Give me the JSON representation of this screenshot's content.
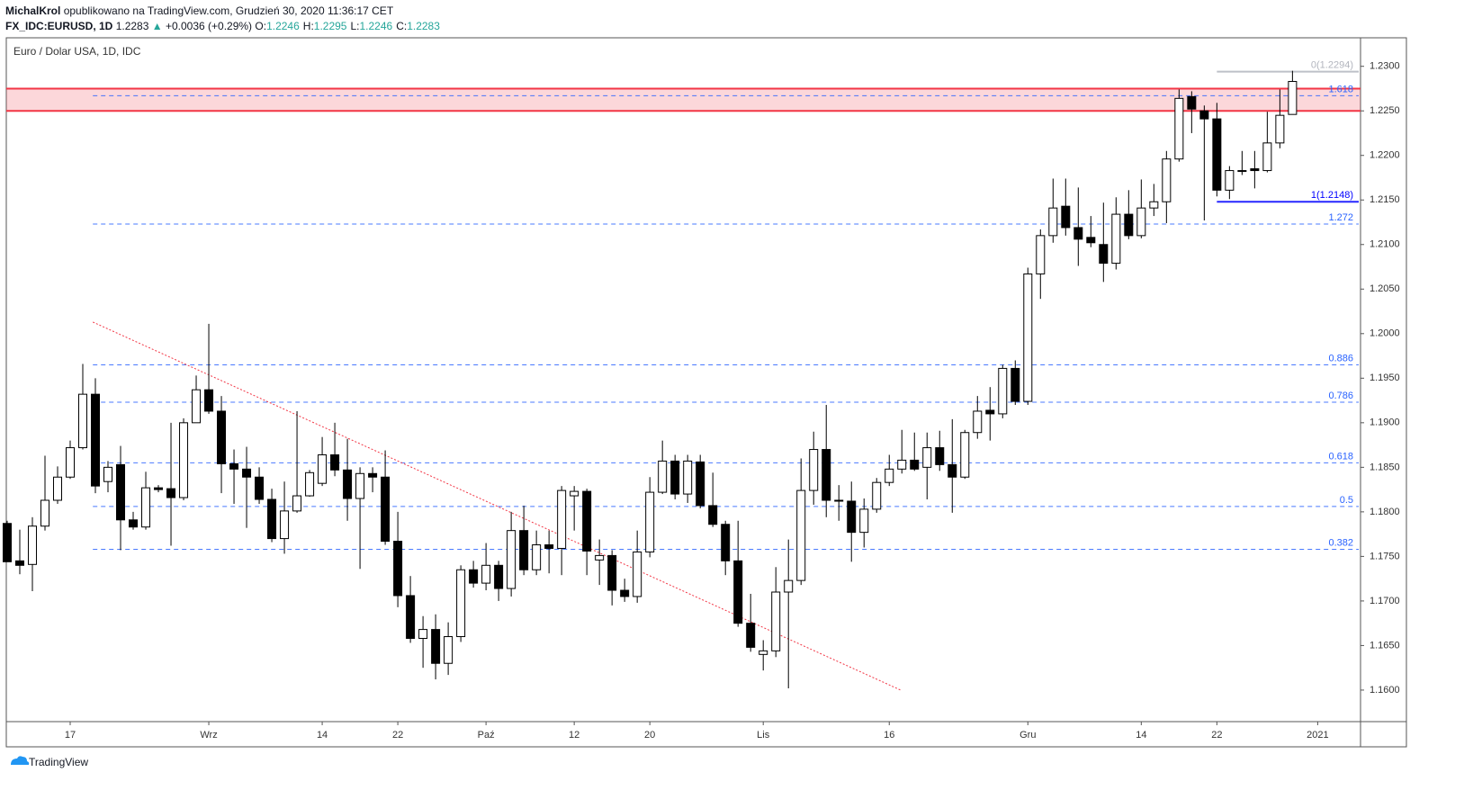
{
  "header": {
    "author": "MichalKrol",
    "published": "opublikowano na TradingView.com, Grudzień 30, 2020 11:36:17 CET",
    "symbol": "FX_IDC:EURUSD, 1D",
    "last": "1.2283",
    "arrow": "▲",
    "change": "+0.0036 (+0.29%)",
    "ohlc": [
      {
        "label": "O:",
        "value": "1.2246"
      },
      {
        "label": "H:",
        "value": "1.2295"
      },
      {
        "label": "L:",
        "value": "1.2246"
      },
      {
        "label": "C:",
        "value": "1.2283"
      }
    ]
  },
  "footer": {
    "brand": "TradingView"
  },
  "chart_data": {
    "type": "candlestick",
    "title": "Euro / Dolar USA, 1D, IDC",
    "open": [
      1.1787,
      1.1745,
      1.1741,
      1.1784,
      1.1813,
      1.1839,
      1.1872,
      1.1932,
      1.1834,
      1.1853,
      1.1791,
      1.1783,
      1.1827,
      1.1826,
      1.1816,
      1.19,
      1.1937,
      1.1913,
      1.1854,
      1.1848,
      1.1839,
      1.1814,
      1.177,
      1.1801,
      1.1818,
      1.1832,
      1.1864,
      1.1847,
      1.1815,
      1.1843,
      1.1839,
      1.1767,
      1.1706,
      1.1658,
      1.1668,
      1.163,
      1.166,
      1.1735,
      1.172,
      1.174,
      1.1714,
      1.1779,
      1.1735,
      1.1763,
      1.1759,
      1.1818,
      1.1823,
      1.1746,
      1.1751,
      1.1712,
      1.1705,
      1.1755,
      1.1822,
      1.1857,
      1.182,
      1.1856,
      1.1807,
      1.1786,
      1.1745,
      1.1675,
      1.164,
      1.1644,
      1.171,
      1.1723,
      1.1824,
      1.187,
      1.1813,
      1.1812,
      1.1777,
      1.1803,
      1.1833,
      1.1848,
      1.1858,
      1.185,
      1.1872,
      1.1853,
      1.1839,
      1.1889,
      1.1914,
      1.191,
      1.1961,
      1.1924,
      1.2067,
      1.211,
      1.2143,
      1.2119,
      1.2108,
      1.21,
      1.2079,
      1.2134,
      1.211,
      1.2141,
      1.2148,
      1.2196,
      1.2266,
      1.225,
      1.2241,
      1.2161,
      1.2182,
      1.2185,
      1.2183,
      1.2214,
      1.2246
    ],
    "high": [
      1.179,
      1.178,
      1.1794,
      1.1863,
      1.1851,
      1.188,
      1.1966,
      1.195,
      1.1857,
      1.1874,
      1.18,
      1.1845,
      1.183,
      1.19,
      1.1905,
      1.1953,
      1.2011,
      1.193,
      1.187,
      1.1873,
      1.185,
      1.1826,
      1.1834,
      1.1913,
      1.1847,
      1.1884,
      1.19,
      1.1882,
      1.185,
      1.185,
      1.1869,
      1.18,
      1.1728,
      1.1683,
      1.1685,
      1.1676,
      1.174,
      1.1745,
      1.1765,
      1.1745,
      1.18,
      1.1807,
      1.1779,
      1.1779,
      1.1829,
      1.1829,
      1.1826,
      1.1769,
      1.1757,
      1.1725,
      1.1779,
      1.1839,
      1.188,
      1.1864,
      1.1864,
      1.1864,
      1.1844,
      1.179,
      1.179,
      1.1708,
      1.1656,
      1.1738,
      1.1769,
      1.186,
      1.189,
      1.192,
      1.183,
      1.1834,
      1.1815,
      1.1838,
      1.1864,
      1.1892,
      1.1889,
      1.1889,
      1.1891,
      1.1904,
      1.1892,
      1.193,
      1.194,
      1.1965,
      1.197,
      1.2074,
      1.2117,
      1.2174,
      1.2174,
      1.2164,
      1.2132,
      1.2147,
      1.2153,
      1.2161,
      1.2173,
      1.2168,
      1.2205,
      1.2274,
      1.2272,
      1.2256,
      1.2259,
      1.2188,
      1.2205,
      1.2205,
      1.2249,
      1.2274,
      1.2295
    ],
    "low": [
      1.1744,
      1.173,
      1.1711,
      1.1779,
      1.1809,
      1.1837,
      1.187,
      1.1821,
      1.1822,
      1.1757,
      1.178,
      1.178,
      1.1822,
      1.1762,
      1.1813,
      1.1901,
      1.191,
      1.1821,
      1.1809,
      1.1782,
      1.1809,
      1.1766,
      1.1753,
      1.1799,
      1.1817,
      1.1829,
      1.184,
      1.179,
      1.1736,
      1.1822,
      1.1763,
      1.1693,
      1.1653,
      1.1625,
      1.1612,
      1.1617,
      1.1654,
      1.1715,
      1.1712,
      1.17,
      1.1705,
      1.1729,
      1.1729,
      1.1731,
      1.1729,
      1.1779,
      1.1729,
      1.1718,
      1.1695,
      1.1699,
      1.1698,
      1.1749,
      1.182,
      1.1814,
      1.181,
      1.1804,
      1.1783,
      1.1729,
      1.1671,
      1.1643,
      1.1622,
      1.1637,
      1.1602,
      1.1718,
      1.1808,
      1.1794,
      1.179,
      1.1744,
      1.176,
      1.1799,
      1.1829,
      1.1843,
      1.1846,
      1.1814,
      1.1846,
      1.1799,
      1.1837,
      1.1882,
      1.188,
      1.1905,
      1.192,
      1.192,
      1.2039,
      1.2102,
      1.211,
      1.2076,
      1.2097,
      1.2058,
      1.2072,
      1.2106,
      1.2107,
      1.2132,
      1.2124,
      1.2193,
      1.2225,
      1.2127,
      1.2154,
      1.2151,
      1.2178,
      1.2163,
      1.2181,
      1.2208,
      1.2246
    ],
    "close": [
      1.1744,
      1.174,
      1.1784,
      1.1813,
      1.1839,
      1.1872,
      1.1932,
      1.1829,
      1.185,
      1.1791,
      1.1783,
      1.1827,
      1.1825,
      1.1816,
      1.19,
      1.1937,
      1.1913,
      1.1854,
      1.1848,
      1.1839,
      1.1814,
      1.177,
      1.1801,
      1.1818,
      1.1844,
      1.1864,
      1.1847,
      1.1815,
      1.1843,
      1.1839,
      1.1767,
      1.1706,
      1.1658,
      1.1668,
      1.163,
      1.166,
      1.1735,
      1.172,
      1.174,
      1.1714,
      1.1779,
      1.1735,
      1.1763,
      1.1759,
      1.1824,
      1.1823,
      1.1756,
      1.1751,
      1.1712,
      1.1705,
      1.1755,
      1.1822,
      1.1857,
      1.182,
      1.1857,
      1.1807,
      1.1786,
      1.1745,
      1.1675,
      1.1648,
      1.1644,
      1.171,
      1.1723,
      1.1824,
      1.187,
      1.1813,
      1.1812,
      1.1777,
      1.1803,
      1.1833,
      1.1848,
      1.1858,
      1.1848,
      1.1872,
      1.1853,
      1.1839,
      1.1889,
      1.1913,
      1.191,
      1.1961,
      1.1924,
      1.2067,
      1.211,
      1.2141,
      1.2119,
      1.2106,
      1.2102,
      1.2079,
      1.2134,
      1.211,
      1.2141,
      1.2148,
      1.2196,
      1.2264,
      1.2252,
      1.2241,
      1.2161,
      1.2183,
      1.2183,
      1.2183,
      1.2214,
      1.2245,
      1.2283
    ],
    "up_color": "#ffffff",
    "down_color": "#000000",
    "wick_color": "#000000",
    "xlim": [
      -0.07,
      107.4
    ],
    "xticks": [
      {
        "value": 5,
        "label": "17"
      },
      {
        "value": 16,
        "label": "Wrz"
      },
      {
        "value": 25,
        "label": "14"
      },
      {
        "value": 31,
        "label": "22"
      },
      {
        "value": 38,
        "label": "Paź"
      },
      {
        "value": 45,
        "label": "12"
      },
      {
        "value": 51,
        "label": "20"
      },
      {
        "value": 60,
        "label": "Lis"
      },
      {
        "value": 70,
        "label": "16"
      },
      {
        "value": 81,
        "label": "Gru"
      },
      {
        "value": 90,
        "label": "14"
      },
      {
        "value": 96,
        "label": "22"
      },
      {
        "value": 104,
        "label": "2021"
      }
    ],
    "ylim": [
      1.15646,
      1.2332
    ],
    "yticks": [
      {
        "value": 1.16,
        "label": "1.1600"
      },
      {
        "value": 1.165,
        "label": "1.1650"
      },
      {
        "value": 1.17,
        "label": "1.1700"
      },
      {
        "value": 1.175,
        "label": "1.1750"
      },
      {
        "value": 1.18,
        "label": "1.1800"
      },
      {
        "value": 1.185,
        "label": "1.1850"
      },
      {
        "value": 1.19,
        "label": "1.1900"
      },
      {
        "value": 1.195,
        "label": "1.1950"
      },
      {
        "value": 1.2,
        "label": "1.2000"
      },
      {
        "value": 1.205,
        "label": "1.2050"
      },
      {
        "value": 1.21,
        "label": "1.2100"
      },
      {
        "value": 1.215,
        "label": "1.2150"
      },
      {
        "value": 1.22,
        "label": "1.2200"
      },
      {
        "value": 1.225,
        "label": "1.2250"
      },
      {
        "value": 1.23,
        "label": "1.2300"
      }
    ],
    "zone": {
      "values": [
        1.225,
        1.2275
      ],
      "color": "#f23645"
    },
    "fib_levels": [
      {
        "label": "0(1.2294)",
        "value": 1.2294,
        "color": "#b2b5be",
        "style": "solid",
        "start": 96
      },
      {
        "label": "1.618",
        "value": 1.2267,
        "color": "#2962ff",
        "style": "dashed",
        "start": 6.8
      },
      {
        "label": "1(1.2148)",
        "value": 1.2148,
        "color": "#0000ff",
        "style": "solid",
        "start": 96
      },
      {
        "label": "1.272",
        "value": 1.2123,
        "color": "#2962ff",
        "style": "dashed",
        "start": 6.8
      },
      {
        "label": "0.886",
        "value": 1.1965,
        "color": "#2962ff",
        "style": "dashed",
        "start": 6.8
      },
      {
        "label": "0.786",
        "value": 1.1923,
        "color": "#2962ff",
        "style": "dashed",
        "start": 6.8
      },
      {
        "label": "0.618",
        "value": 1.1855,
        "color": "#2962ff",
        "style": "dashed",
        "start": 6.8
      },
      {
        "label": "0.5",
        "value": 1.1806,
        "color": "#2962ff",
        "style": "dashed",
        "start": 6.8
      },
      {
        "label": "0.382",
        "value": 1.1758,
        "color": "#2962ff",
        "style": "dashed",
        "start": 6.8
      }
    ],
    "trendline": {
      "x": [
        6.8,
        70.9
      ],
      "y": [
        1.2013,
        1.16
      ],
      "color": "#f23645"
    }
  }
}
